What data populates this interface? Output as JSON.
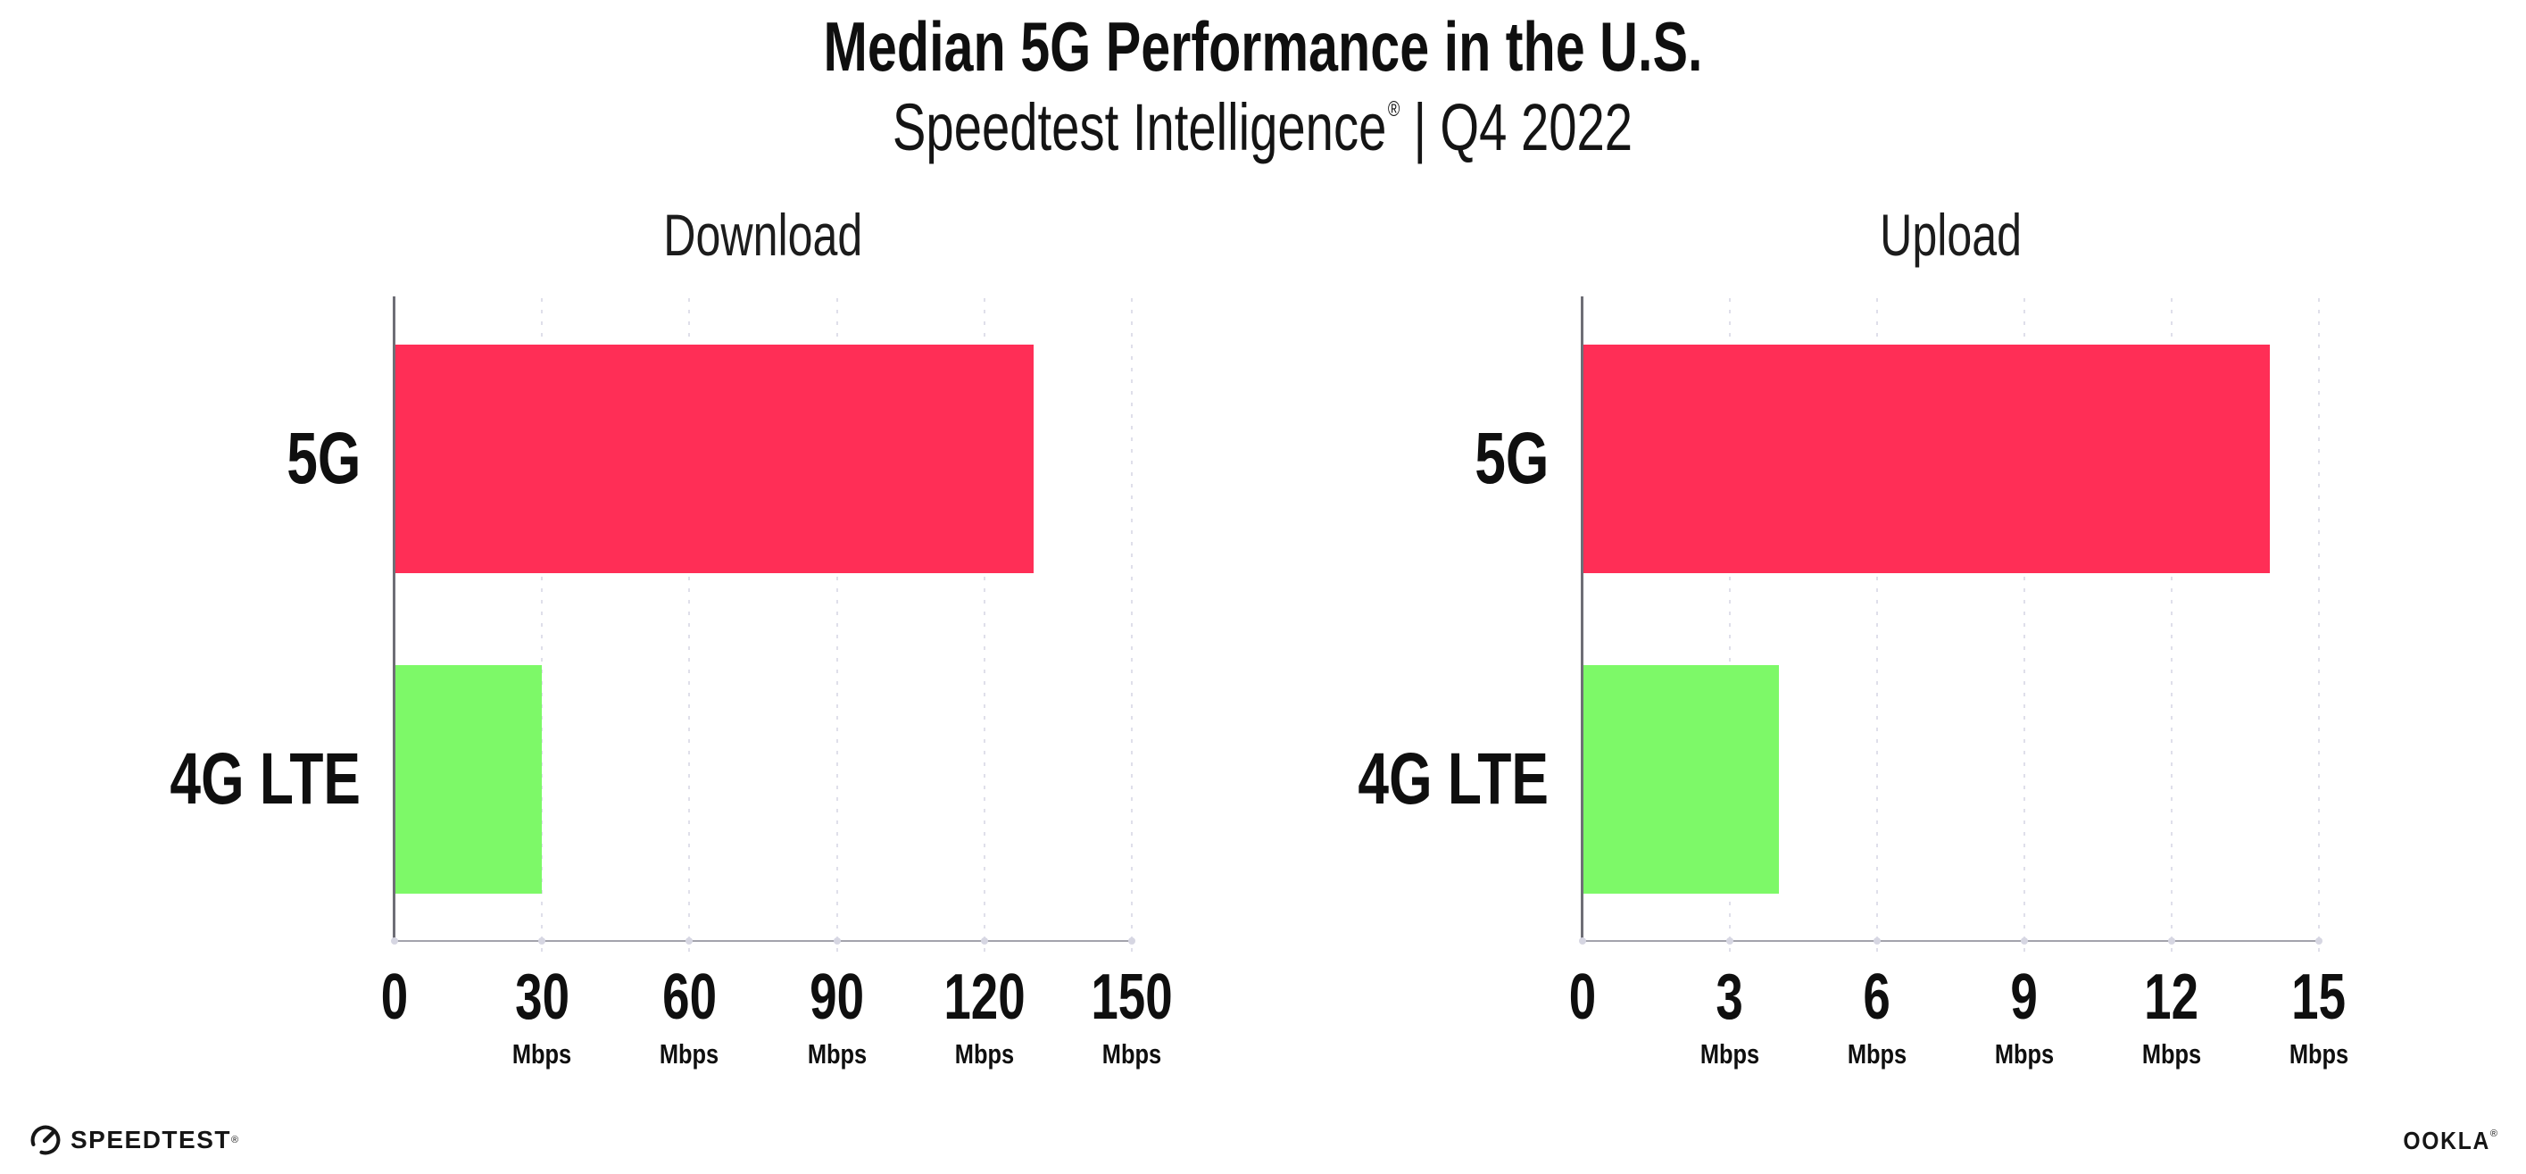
{
  "header": {
    "title": "Median 5G Performance in the U.S.",
    "subtitle_brand": "Speedtest Intelligence",
    "subtitle_reg": "®",
    "subtitle_sep": "|",
    "subtitle_period": "Q4 2022"
  },
  "chart_data": [
    {
      "type": "bar",
      "orientation": "horizontal",
      "title": "Download",
      "categories": [
        "5G",
        "4G LTE"
      ],
      "values": [
        130,
        30
      ],
      "unit": "Mbps",
      "xlim": [
        0,
        150
      ],
      "xticks": [
        0,
        30,
        60,
        90,
        120,
        150
      ],
      "bar_colors": [
        "#FF2E56",
        "#7DF968"
      ],
      "grid": "vertical-dotted",
      "legend": "none"
    },
    {
      "type": "bar",
      "orientation": "horizontal",
      "title": "Upload",
      "categories": [
        "5G",
        "4G LTE"
      ],
      "values": [
        14,
        4
      ],
      "unit": "Mbps",
      "xlim": [
        0,
        15
      ],
      "xticks": [
        0,
        3,
        6,
        9,
        12,
        15
      ],
      "bar_colors": [
        "#FF2E56",
        "#7DF968"
      ],
      "grid": "vertical-dotted",
      "legend": "none"
    }
  ],
  "footer": {
    "speedtest_label": "SPEEDTEST",
    "speedtest_reg": "®",
    "ookla_label": "OOKLA",
    "ookla_reg": "®"
  },
  "colors": {
    "bar_5g": "#FF2E56",
    "bar_4g_lte": "#7DF968",
    "text": "#0F0F0F",
    "axis_line": "#A3A3AC",
    "y_spine": "#6E6E76",
    "grid_dots": "#DFDFEA"
  }
}
